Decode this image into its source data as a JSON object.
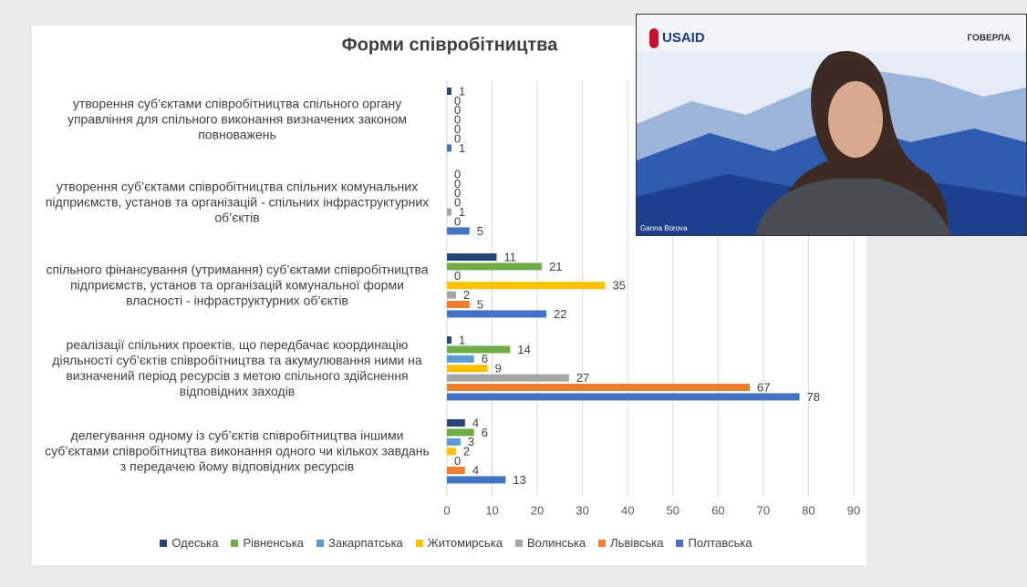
{
  "chart_data": {
    "type": "barh",
    "title": "Форми співробітництва",
    "categories": [
      "утворення суб’єктами співробітництва спільного органу управління для спільного виконання визначених законом повноважень",
      "утворення суб’єктами співробітництва спільних комунальних підприємств, установ та організацій - спільних інфраструктурних об’єктів",
      "спільного фінансування (утримання) суб’єктами співробітництва підприємств, установ та організацій комунальної форми власності - інфраструктурних об’єктів",
      "реалізації спільних проектів, що передбачає координацію діяльності суб’єктів співробітництва та акумулювання ними на визначений період ресурсів з метою спільного здійснення відповідних заходів",
      "делегування одному із суб’єктів співробітництва іншими суб’єктами співробітництва виконання одного чи кількох завдань з передачею йому відповідних ресурсів"
    ],
    "series": [
      {
        "name": "Одеська",
        "color": "#264478",
        "values": [
          1,
          0,
          11,
          1,
          4
        ]
      },
      {
        "name": "Рівненська",
        "color": "#70ad47",
        "values": [
          0,
          0,
          21,
          14,
          6
        ]
      },
      {
        "name": "Закарпатська",
        "color": "#5b9bd5",
        "values": [
          0,
          0,
          0,
          6,
          3
        ]
      },
      {
        "name": "Житомирська",
        "color": "#ffc000",
        "values": [
          0,
          0,
          35,
          9,
          2
        ]
      },
      {
        "name": "Волинська",
        "color": "#a5a5a5",
        "values": [
          0,
          1,
          2,
          27,
          0
        ]
      },
      {
        "name": "Львівська",
        "color": "#ed7d31",
        "values": [
          0,
          0,
          5,
          67,
          4
        ]
      },
      {
        "name": "Полтавська",
        "color": "#4472c4",
        "values": [
          1,
          5,
          22,
          78,
          13
        ]
      }
    ],
    "xlim": [
      0,
      90
    ],
    "xticks": [
      0,
      10,
      20,
      30,
      40,
      50,
      60,
      70,
      80,
      90
    ],
    "grid": true,
    "legend": "bottom"
  },
  "video": {
    "logo": "USAID",
    "brand": "ГОВЕРЛА",
    "speaker": "Ganna Borova"
  }
}
